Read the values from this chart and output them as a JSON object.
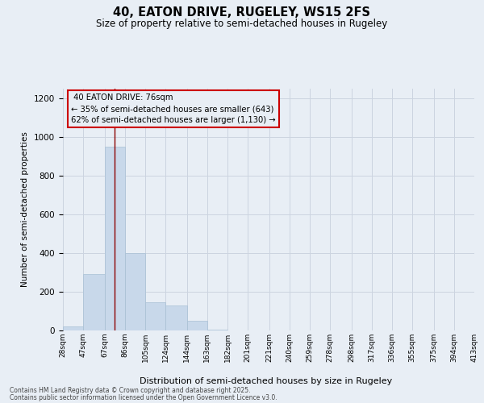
{
  "title": "40, EATON DRIVE, RUGELEY, WS15 2FS",
  "subtitle": "Size of property relative to semi-detached houses in Rugeley",
  "xlabel": "Distribution of semi-detached houses by size in Rugeley",
  "ylabel": "Number of semi-detached properties",
  "property_label": "40 EATON DRIVE: 76sqm",
  "smaller_pct": "35% of semi-detached houses are smaller (643)",
  "larger_pct": "62% of semi-detached houses are larger (1,130)",
  "property_size": 76,
  "bin_edges": [
    28,
    47,
    67,
    86,
    105,
    124,
    144,
    163,
    182,
    201,
    221,
    240,
    259,
    278,
    298,
    317,
    336,
    355,
    375,
    394,
    413
  ],
  "bar_heights": [
    20,
    290,
    950,
    400,
    145,
    130,
    50,
    5,
    0,
    0,
    0,
    0,
    0,
    0,
    0,
    0,
    0,
    0,
    0,
    0
  ],
  "bar_color": "#c8d8ea",
  "bar_edge_color": "#a8c0d4",
  "vline_color": "#8b0000",
  "grid_color": "#ccd4e0",
  "background_color": "#e8eef5",
  "box_edge_color": "#cc0000",
  "box_bg_color": "#e8eef5",
  "ylim": [
    0,
    1250
  ],
  "yticks": [
    0,
    200,
    400,
    600,
    800,
    1000,
    1200
  ],
  "footer_line1": "Contains HM Land Registry data © Crown copyright and database right 2025.",
  "footer_line2": "Contains public sector information licensed under the Open Government Licence v3.0."
}
